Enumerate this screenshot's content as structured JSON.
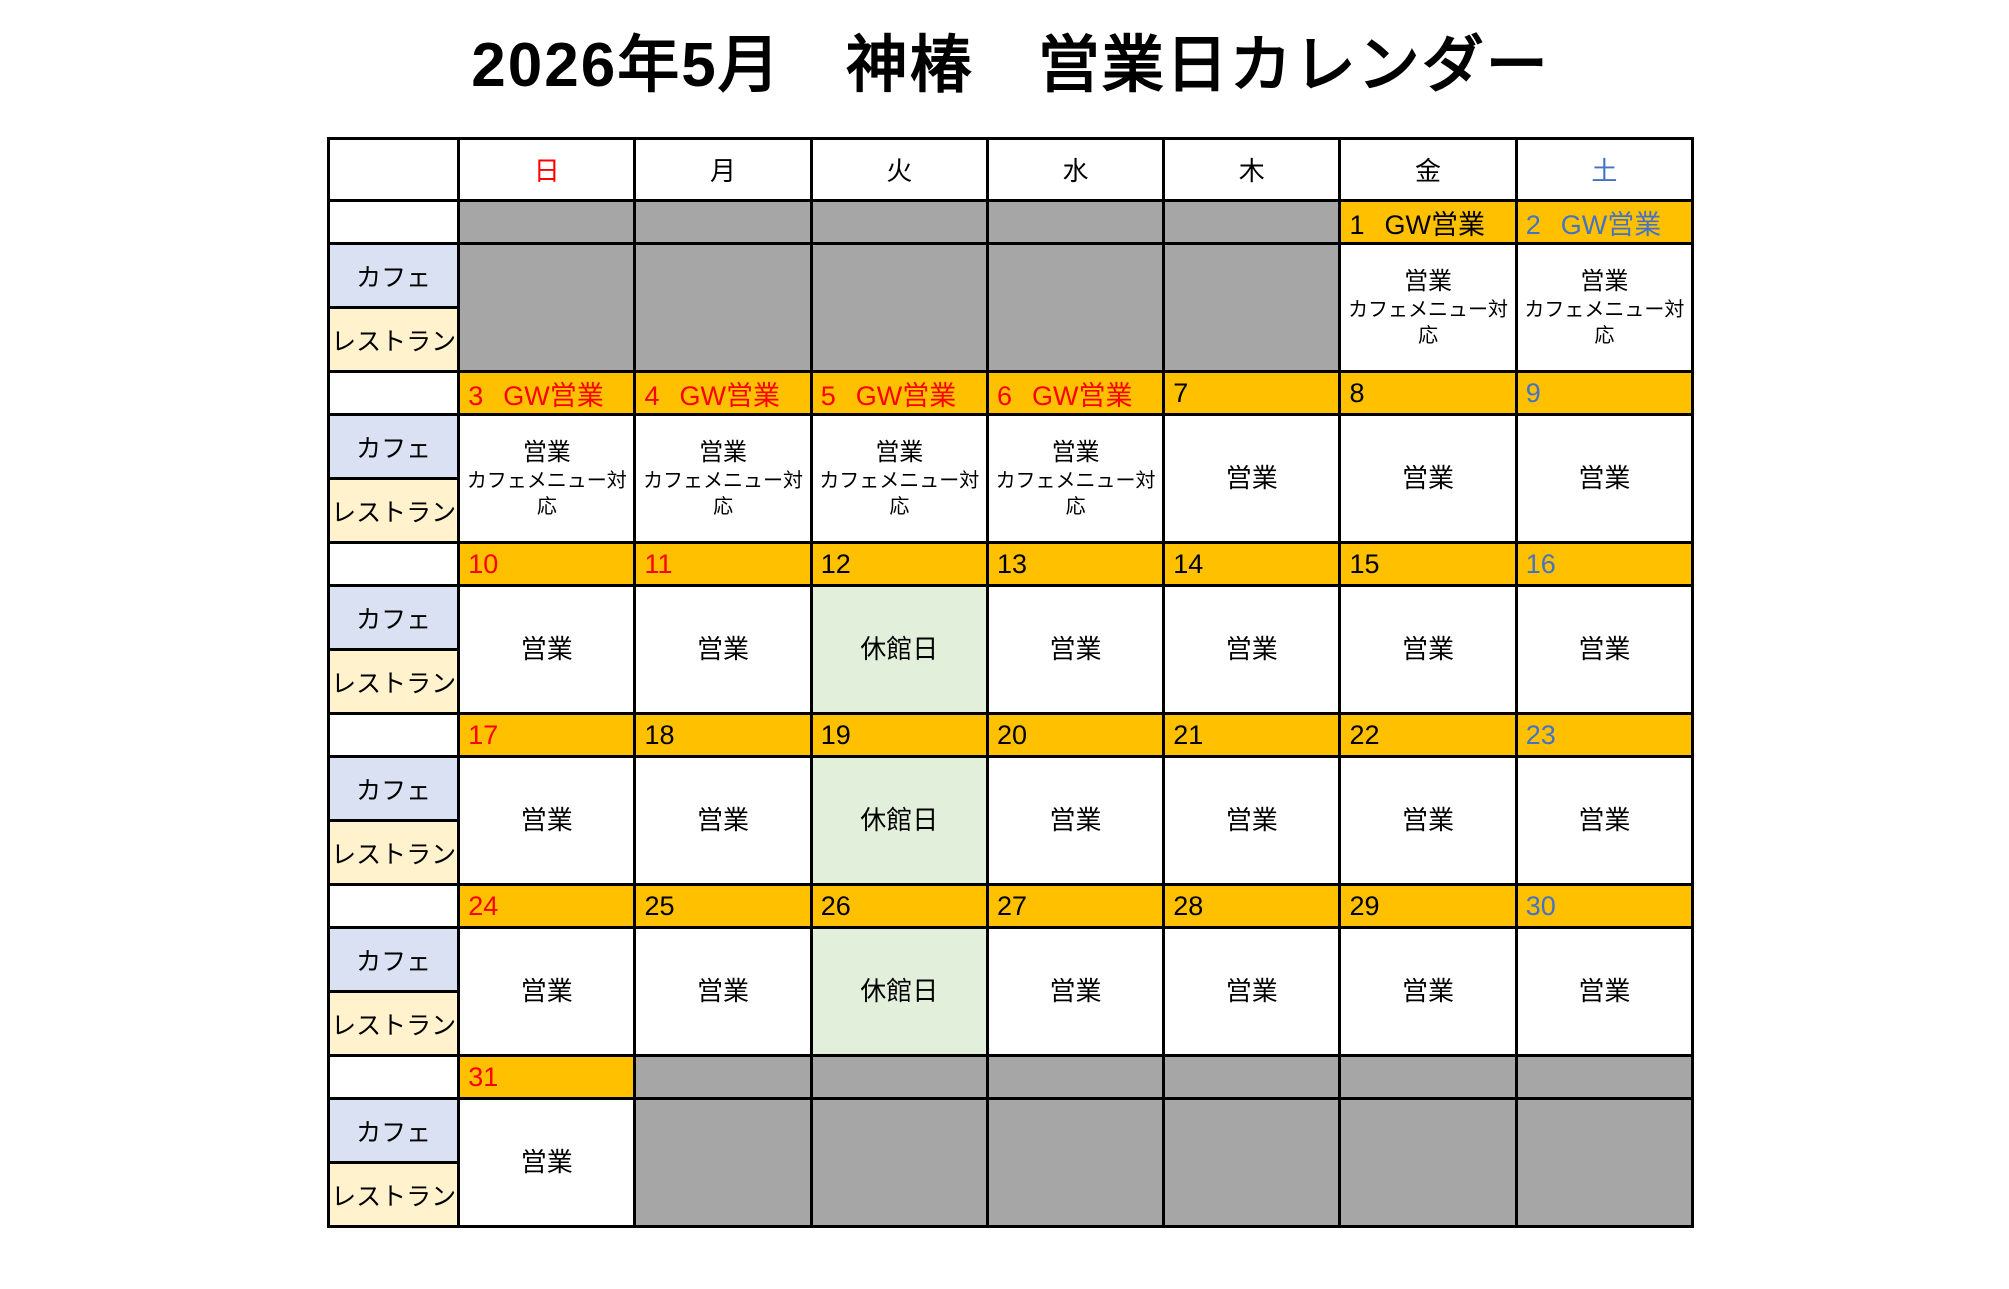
{
  "title": "2026年5月　神椿　営業日カレンダー",
  "weekdays": [
    {
      "label": "日",
      "color": "#FF0000"
    },
    {
      "label": "月",
      "color": "#000000"
    },
    {
      "label": "火",
      "color": "#000000"
    },
    {
      "label": "水",
      "color": "#000000"
    },
    {
      "label": "木",
      "color": "#000000"
    },
    {
      "label": "金",
      "color": "#000000"
    },
    {
      "label": "土",
      "color": "#4472C4"
    }
  ],
  "row_labels": {
    "cafe": "カフェ",
    "restaurant": "レストラン"
  },
  "legend": {
    "open": "営業",
    "cafe_menu": "カフェメニュー対応",
    "closed": "休館日",
    "gw": "GW営業"
  },
  "colors": {
    "orange": "#FFC000",
    "gray": "#A6A6A6",
    "green": "#E2EFDA",
    "cafe_bg": "#D9E1F2",
    "restaurant_bg": "#FFF2CC",
    "red": "#FF0000",
    "blue": "#4472C4",
    "black": "#000000",
    "white": "#FFFFFF"
  },
  "weeks": [
    {
      "days": [
        {
          "out": true
        },
        {
          "out": true
        },
        {
          "out": true
        },
        {
          "out": true
        },
        {
          "out": true
        },
        {
          "date": "1",
          "tag": "GW営業",
          "color": "black",
          "status": "open_cafe"
        },
        {
          "date": "2",
          "tag": "GW営業",
          "color": "blue",
          "status": "open_cafe"
        }
      ]
    },
    {
      "days": [
        {
          "date": "3",
          "tag": "GW営業",
          "color": "red",
          "status": "open_cafe"
        },
        {
          "date": "4",
          "tag": "GW営業",
          "color": "red",
          "status": "open_cafe"
        },
        {
          "date": "5",
          "tag": "GW営業",
          "color": "red",
          "status": "open_cafe"
        },
        {
          "date": "6",
          "tag": "GW営業",
          "color": "red",
          "status": "open_cafe"
        },
        {
          "date": "7",
          "color": "black",
          "status": "open"
        },
        {
          "date": "8",
          "color": "black",
          "status": "open"
        },
        {
          "date": "9",
          "color": "blue",
          "status": "open"
        }
      ]
    },
    {
      "days": [
        {
          "date": "10",
          "color": "red",
          "status": "open"
        },
        {
          "date": "11",
          "color": "red",
          "status": "open"
        },
        {
          "date": "12",
          "color": "black",
          "status": "closed"
        },
        {
          "date": "13",
          "color": "black",
          "status": "open"
        },
        {
          "date": "14",
          "color": "black",
          "status": "open"
        },
        {
          "date": "15",
          "color": "black",
          "status": "open"
        },
        {
          "date": "16",
          "color": "blue",
          "status": "open"
        }
      ]
    },
    {
      "days": [
        {
          "date": "17",
          "color": "red",
          "status": "open"
        },
        {
          "date": "18",
          "color": "black",
          "status": "open"
        },
        {
          "date": "19",
          "color": "black",
          "status": "closed"
        },
        {
          "date": "20",
          "color": "black",
          "status": "open"
        },
        {
          "date": "21",
          "color": "black",
          "status": "open"
        },
        {
          "date": "22",
          "color": "black",
          "status": "open"
        },
        {
          "date": "23",
          "color": "blue",
          "status": "open"
        }
      ]
    },
    {
      "days": [
        {
          "date": "24",
          "color": "red",
          "status": "open"
        },
        {
          "date": "25",
          "color": "black",
          "status": "open"
        },
        {
          "date": "26",
          "color": "black",
          "status": "closed"
        },
        {
          "date": "27",
          "color": "black",
          "status": "open"
        },
        {
          "date": "28",
          "color": "black",
          "status": "open"
        },
        {
          "date": "29",
          "color": "black",
          "status": "open"
        },
        {
          "date": "30",
          "color": "blue",
          "status": "open"
        }
      ]
    },
    {
      "days": [
        {
          "date": "31",
          "color": "red",
          "status": "open"
        },
        {
          "out": true
        },
        {
          "out": true
        },
        {
          "out": true
        },
        {
          "out": true
        },
        {
          "out": true
        },
        {
          "out": true
        }
      ]
    }
  ]
}
